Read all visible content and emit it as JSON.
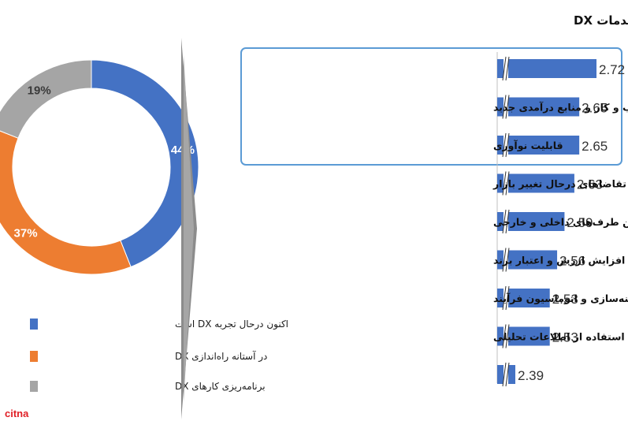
{
  "chart_data": [
    {
      "type": "pie",
      "categories": [
        "اکنون درحال تجربه DX است",
        "در آستانه راه‌اندازی DX",
        "برنامه‌ریزی کارهای DX"
      ],
      "values": [
        44,
        37,
        19
      ],
      "labels": [
        "44%",
        "37%",
        "19%"
      ],
      "colors": [
        "#4472c4",
        "#ed7d31",
        "#a5a5a5"
      ],
      "legend": [
        "اکنون درحال تجربه DX است",
        "در آستانه راه‌اندازی DX",
        "برنامه‌ریزی کارهای DX"
      ],
      "legend_position": "bottom",
      "donut": true
    },
    {
      "type": "bar",
      "orientation": "horizontal",
      "title": "نتایج مطلوب خدمات DX",
      "categories": [
        "",
        "مدل‌های کسب و کار و منابع درآمدی جدید",
        "قابلیت نوآوری",
        "قابلیت پیش‌بینی و واکنش سریع به تقاضاهای درحال تغییر بازار",
        "مشارکت کارآمد بین طرف‌های داخلی و خارجی",
        "افزایش ارزش و اعتبار برند",
        "بهینه‌سازی و اتوماسیون فرآیند",
        "تصمیم‌گیری مبتنی بر واقعیت بهنگام با استفاده از اطلاعات تحلیلی",
        ""
      ],
      "values": [
        2.72,
        2.65,
        2.65,
        2.63,
        2.59,
        2.56,
        2.53,
        2.53,
        2.39
      ],
      "value_labels": [
        "2.72",
        "2.65",
        "2.65",
        "2.63",
        "2.59",
        "2.56",
        "2.53",
        "2.53",
        "2.39"
      ],
      "color": "#4472c4",
      "axis_break": true,
      "highlight_rows": [
        0,
        1,
        2
      ],
      "highlight_color": "#5b9bd5"
    }
  ],
  "watermark": "citna"
}
